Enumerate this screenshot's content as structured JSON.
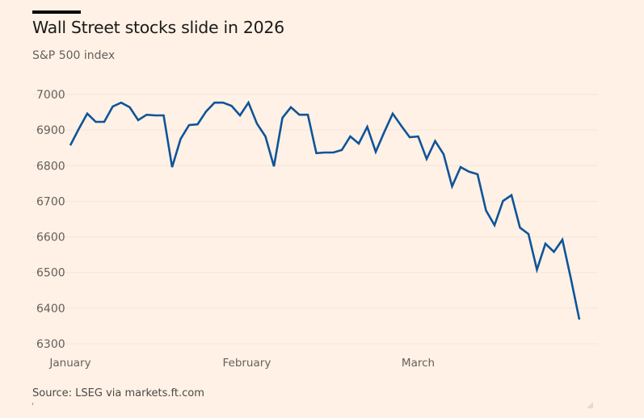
{
  "header": {
    "title": "Wall Street stocks slide in 2026",
    "subtitle": "S&P 500 index"
  },
  "footer": {
    "source": "Source: LSEG via markets.ft.com"
  },
  "colors": {
    "background": "#fff1e5",
    "line": "#0f5499",
    "text": "#66605c",
    "gridline": "#f2e5da"
  },
  "chart_data": {
    "type": "line",
    "title": "Wall Street stocks slide in 2026",
    "subtitle": "S&P 500 index",
    "xlabel": "",
    "ylabel": "",
    "ylim": [
      6300,
      7000
    ],
    "yticks": [
      7000,
      6900,
      6800,
      6700,
      6600,
      6500,
      6400,
      6300
    ],
    "xtick_labels": [
      {
        "label": "January",
        "index": 0
      },
      {
        "label": "February",
        "index": 20.8
      },
      {
        "label": "March",
        "index": 41
      }
    ],
    "grid": true,
    "legend": "none",
    "series": [
      {
        "name": "S&P 500",
        "values": [
          6857,
          6903,
          6946,
          6923,
          6923,
          6966,
          6977,
          6964,
          6928,
          6943,
          6941,
          6941,
          6796,
          6875,
          6914,
          6916,
          6952,
          6977,
          6977,
          6968,
          6941,
          6977,
          6918,
          6882,
          6798,
          6934,
          6964,
          6943,
          6943,
          6835,
          6837,
          6837,
          6844,
          6882,
          6862,
          6909,
          6839,
          6894,
          6946,
          6912,
          6880,
          6882,
          6819,
          6869,
          6832,
          6742,
          6796,
          6783,
          6776,
          6674,
          6633,
          6701,
          6717,
          6626,
          6608,
          6508,
          6581,
          6558,
          6592,
          6483,
          6368
        ]
      }
    ],
    "source": "Source: LSEG via markets.ft.com"
  }
}
